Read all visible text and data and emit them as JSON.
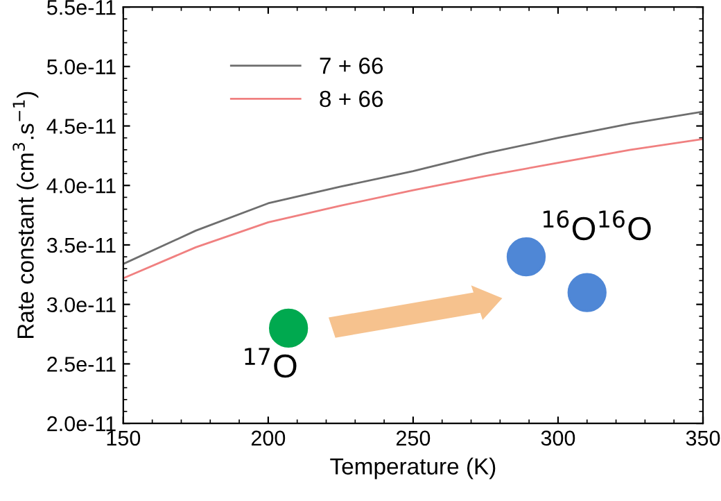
{
  "chart_data": {
    "type": "line",
    "xlabel": "Temperature (K)",
    "ylabel": "Rate constant (cm$^{3}$.s$^{−1}$)",
    "x": [
      150,
      175,
      200,
      225,
      250,
      275,
      300,
      325,
      350
    ],
    "series": [
      {
        "name": "7 + 66",
        "color": "#6e6e6e",
        "values": [
          3.34e-11,
          3.62e-11,
          3.85e-11,
          3.99e-11,
          4.12e-11,
          4.27e-11,
          4.4e-11,
          4.52e-11,
          4.62e-11
        ]
      },
      {
        "name": "8 + 66",
        "color": "#f08080",
        "values": [
          3.22e-11,
          3.48e-11,
          3.69e-11,
          3.83e-11,
          3.96e-11,
          4.08e-11,
          4.19e-11,
          4.3e-11,
          4.39e-11
        ]
      }
    ],
    "xlim": [
      150,
      350
    ],
    "xticks": [
      150,
      200,
      250,
      300,
      350
    ],
    "ylim": [
      2e-11,
      5.5e-11
    ],
    "yticks": [
      {
        "value": 2e-11,
        "label": "2.0e-11"
      },
      {
        "value": 2.5e-11,
        "label": "2.5e-11"
      },
      {
        "value": 3e-11,
        "label": "3.0e-11"
      },
      {
        "value": 3.5e-11,
        "label": "3.5e-11"
      },
      {
        "value": 4e-11,
        "label": "4.0e-11"
      },
      {
        "value": 4.5e-11,
        "label": "4.5e-11"
      },
      {
        "value": 5e-11,
        "label": "5.0e-11"
      },
      {
        "value": 5.5e-11,
        "label": "5.5e-11"
      }
    ],
    "annotations": [
      "$^{17}$O",
      "$^{16}$O$^{16}$O"
    ],
    "legend": "top left",
    "grid": false,
    "marker": "none",
    "line_style": "solid"
  }
}
